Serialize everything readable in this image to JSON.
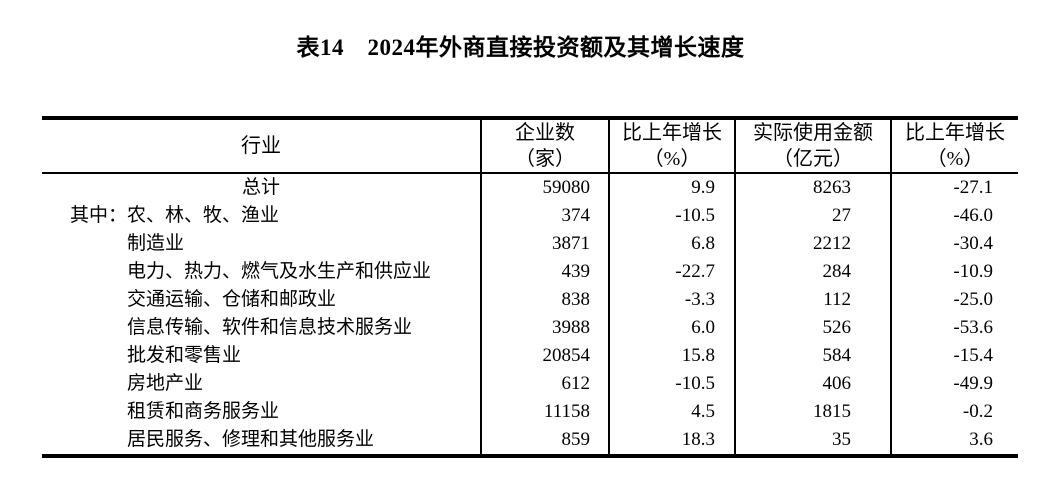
{
  "title": "表14　2024年外商直接投资额及其增长速度",
  "colors": {
    "text": "#000000",
    "background": "#ffffff",
    "rule": "#000000"
  },
  "table": {
    "columns": [
      {
        "label": "行业",
        "sub": ""
      },
      {
        "label": "企业数",
        "sub": "（家）"
      },
      {
        "label": "比上年增长",
        "sub": "（%）"
      },
      {
        "label": "实际使用金额",
        "sub": "（亿元）"
      },
      {
        "label": "比上年增长",
        "sub": "（%）"
      }
    ],
    "rows": [
      {
        "prefix": "",
        "industry": "总计",
        "align": "center",
        "enterprises": "59080",
        "growth1": "9.9",
        "amount": "8263",
        "growth2": "-27.1"
      },
      {
        "prefix": "其中：",
        "industry": "农、林、牧、渔业",
        "align": "left",
        "enterprises": "374",
        "growth1": "-10.5",
        "amount": "27",
        "growth2": "-46.0"
      },
      {
        "prefix": "",
        "industry": "制造业",
        "align": "left",
        "enterprises": "3871",
        "growth1": "6.8",
        "amount": "2212",
        "growth2": "-30.4"
      },
      {
        "prefix": "",
        "industry": "电力、热力、燃气及水生产和供应业",
        "align": "left",
        "enterprises": "439",
        "growth1": "-22.7",
        "amount": "284",
        "growth2": "-10.9"
      },
      {
        "prefix": "",
        "industry": "交通运输、仓储和邮政业",
        "align": "left",
        "enterprises": "838",
        "growth1": "-3.3",
        "amount": "112",
        "growth2": "-25.0"
      },
      {
        "prefix": "",
        "industry": "信息传输、软件和信息技术服务业",
        "align": "left",
        "enterprises": "3988",
        "growth1": "6.0",
        "amount": "526",
        "growth2": "-53.6"
      },
      {
        "prefix": "",
        "industry": "批发和零售业",
        "align": "left",
        "enterprises": "20854",
        "growth1": "15.8",
        "amount": "584",
        "growth2": "-15.4"
      },
      {
        "prefix": "",
        "industry": "房地产业",
        "align": "left",
        "enterprises": "612",
        "growth1": "-10.5",
        "amount": "406",
        "growth2": "-49.9"
      },
      {
        "prefix": "",
        "industry": "租赁和商务服务业",
        "align": "left",
        "enterprises": "11158",
        "growth1": "4.5",
        "amount": "1815",
        "growth2": "-0.2"
      },
      {
        "prefix": "",
        "industry": "居民服务、修理和其他服务业",
        "align": "left",
        "enterprises": "859",
        "growth1": "18.3",
        "amount": "35",
        "growth2": "3.6"
      }
    ]
  }
}
